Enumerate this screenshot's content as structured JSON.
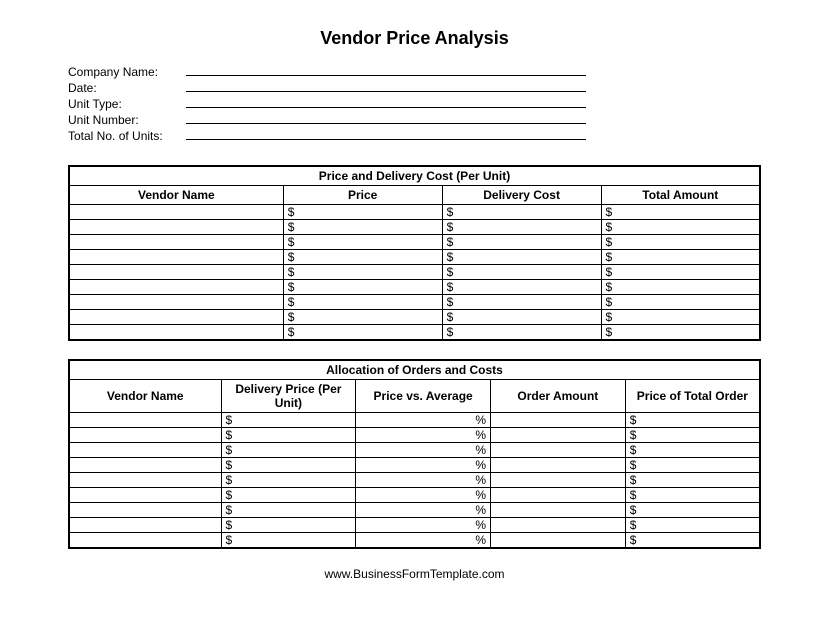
{
  "title": "Vendor Price Analysis",
  "header_fields": [
    {
      "label": "Company Name:"
    },
    {
      "label": "Date:"
    },
    {
      "label": "Unit Type:"
    },
    {
      "label": "Unit Number:"
    },
    {
      "label": "Total No. of Units:"
    }
  ],
  "table1": {
    "caption": "Price and Delivery Cost (Per Unit)",
    "columns": [
      "Vendor Name",
      "Price",
      "Delivery Cost",
      "Total Amount"
    ],
    "col_widths": [
      "31%",
      "23%",
      "23%",
      "23%"
    ],
    "row_count": 9,
    "cell_prefix": [
      "",
      "$",
      "$",
      "$"
    ],
    "cell_align": [
      "left",
      "left",
      "left",
      "left"
    ]
  },
  "table2": {
    "caption": "Allocation of Orders and Costs",
    "columns": [
      "Vendor Name",
      "Delivery Price (Per Unit)",
      "Price vs. Average",
      "Order Amount",
      "Price of Total Order"
    ],
    "col_widths": [
      "22%",
      "19.5%",
      "19.5%",
      "19.5%",
      "19.5%"
    ],
    "row_count": 9,
    "cell_prefix": [
      "",
      "$",
      "%",
      "",
      "$"
    ],
    "cell_align": [
      "left",
      "left",
      "right",
      "left",
      "left"
    ]
  },
  "footer": "www.BusinessFormTemplate.com",
  "colors": {
    "background": "#ffffff",
    "text": "#000000",
    "border": "#000000"
  }
}
